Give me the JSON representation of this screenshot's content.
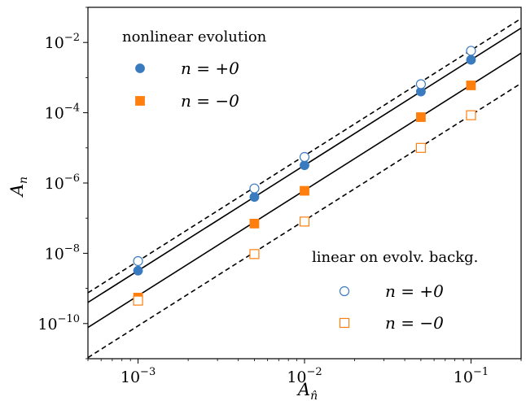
{
  "chart_data": {
    "type": "scatter",
    "x_scale": "log",
    "y_scale": "log",
    "xlim": [
      0.0005,
      0.2
    ],
    "ylim": [
      1e-11,
      0.1
    ],
    "xlabel_base": "A",
    "xlabel_sub": "n̂",
    "ylabel_base": "A",
    "ylabel_sub": "n",
    "x_ticks": [
      {
        "value": 0.001,
        "base": "10",
        "exp": "−3"
      },
      {
        "value": 0.01,
        "base": "10",
        "exp": "−2"
      },
      {
        "value": 0.1,
        "base": "10",
        "exp": "−1"
      }
    ],
    "y_ticks": [
      {
        "value": 1e-10,
        "base": "10",
        "exp": "−10"
      },
      {
        "value": 1e-08,
        "base": "10",
        "exp": "−8"
      },
      {
        "value": 1e-06,
        "base": "10",
        "exp": "−6"
      },
      {
        "value": 0.0001,
        "base": "10",
        "exp": "−4"
      },
      {
        "value": 0.01,
        "base": "10",
        "exp": "−2"
      }
    ],
    "x": [
      0.001,
      0.005,
      0.01,
      0.05,
      0.1
    ],
    "series": [
      {
        "name": "n = +0",
        "group": "nonlinear",
        "marker": "circle",
        "filled": true,
        "color": "#3a7bbf",
        "values": [
          3.2e-09,
          4e-07,
          3.2e-06,
          0.0004,
          0.0032
        ]
      },
      {
        "name": "n = −0",
        "group": "nonlinear",
        "marker": "square",
        "filled": true,
        "color": "#ff7f0e",
        "values": [
          5.5e-10,
          7e-08,
          6e-07,
          7.5e-05,
          0.0006
        ]
      },
      {
        "name": "n = +0",
        "group": "linear",
        "marker": "circle",
        "filled": false,
        "color": "#3a7bbf",
        "values": [
          6e-09,
          7e-07,
          5.5e-06,
          0.00065,
          0.0058
        ]
      },
      {
        "name": "n = −0",
        "group": "linear",
        "marker": "square",
        "filled": false,
        "color": "#ff7f0e",
        "values": [
          4.5e-10,
          9.5e-09,
          8e-08,
          1e-05,
          8.5e-05
        ]
      }
    ],
    "reference_lines": [
      {
        "style": "dashed",
        "slope": 3,
        "intercept_at_x": 0.001,
        "y_at_x": 6e-09
      },
      {
        "style": "solid",
        "slope": 3,
        "intercept_at_x": 0.001,
        "y_at_x": 3.2e-09
      },
      {
        "style": "solid",
        "slope": 3,
        "intercept_at_x": 0.001,
        "y_at_x": 6.2e-10
      },
      {
        "style": "dashed",
        "slope": 3,
        "intercept_at_x": 0.001,
        "y_at_x": 8.6e-11
      }
    ],
    "legends": [
      {
        "title": "nonlinear evolution",
        "placement": "top-left",
        "entries": [
          {
            "label": "n = +0",
            "marker": "circle",
            "filled": true,
            "color": "#3a7bbf"
          },
          {
            "label": "n = −0",
            "marker": "square",
            "filled": true,
            "color": "#ff7f0e"
          }
        ]
      },
      {
        "title": "linear on evolv. backg.",
        "placement": "bottom-right",
        "entries": [
          {
            "label": "n = +0",
            "marker": "circle",
            "filled": false,
            "color": "#3a7bbf"
          },
          {
            "label": "n = −0",
            "marker": "square",
            "filled": false,
            "color": "#ff7f0e"
          }
        ]
      }
    ]
  }
}
